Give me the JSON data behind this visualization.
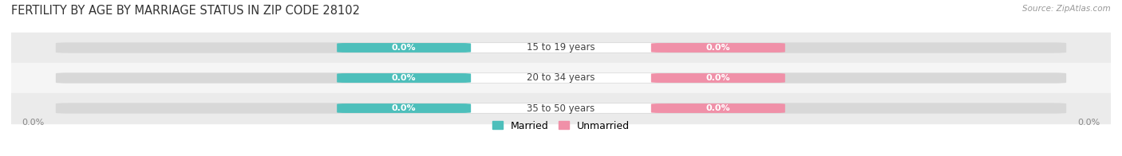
{
  "title": "FERTILITY BY AGE BY MARRIAGE STATUS IN ZIP CODE 28102",
  "source": "Source: ZipAtlas.com",
  "categories": [
    "15 to 19 years",
    "20 to 34 years",
    "35 to 50 years"
  ],
  "married_values": [
    0.0,
    0.0,
    0.0
  ],
  "unmarried_values": [
    0.0,
    0.0,
    0.0
  ],
  "married_color": "#4dbfbb",
  "unmarried_color": "#f090a8",
  "row_colors_odd": "#ebebeb",
  "row_colors_even": "#f5f5f5",
  "bar_track_color": "#d8d8d8",
  "center_label_color": "#444444",
  "title_fontsize": 10.5,
  "source_fontsize": 7.5,
  "pill_fontsize": 8,
  "cat_fontsize": 8.5,
  "legend_fontsize": 9,
  "axis_tick_fontsize": 8,
  "axis_tick_color": "#888888",
  "figsize": [
    14.06,
    1.96
  ],
  "dpi": 100,
  "background_color": "#ffffff",
  "xlim": [
    -1.05,
    1.05
  ],
  "ylim": [
    -0.65,
    2.65
  ]
}
